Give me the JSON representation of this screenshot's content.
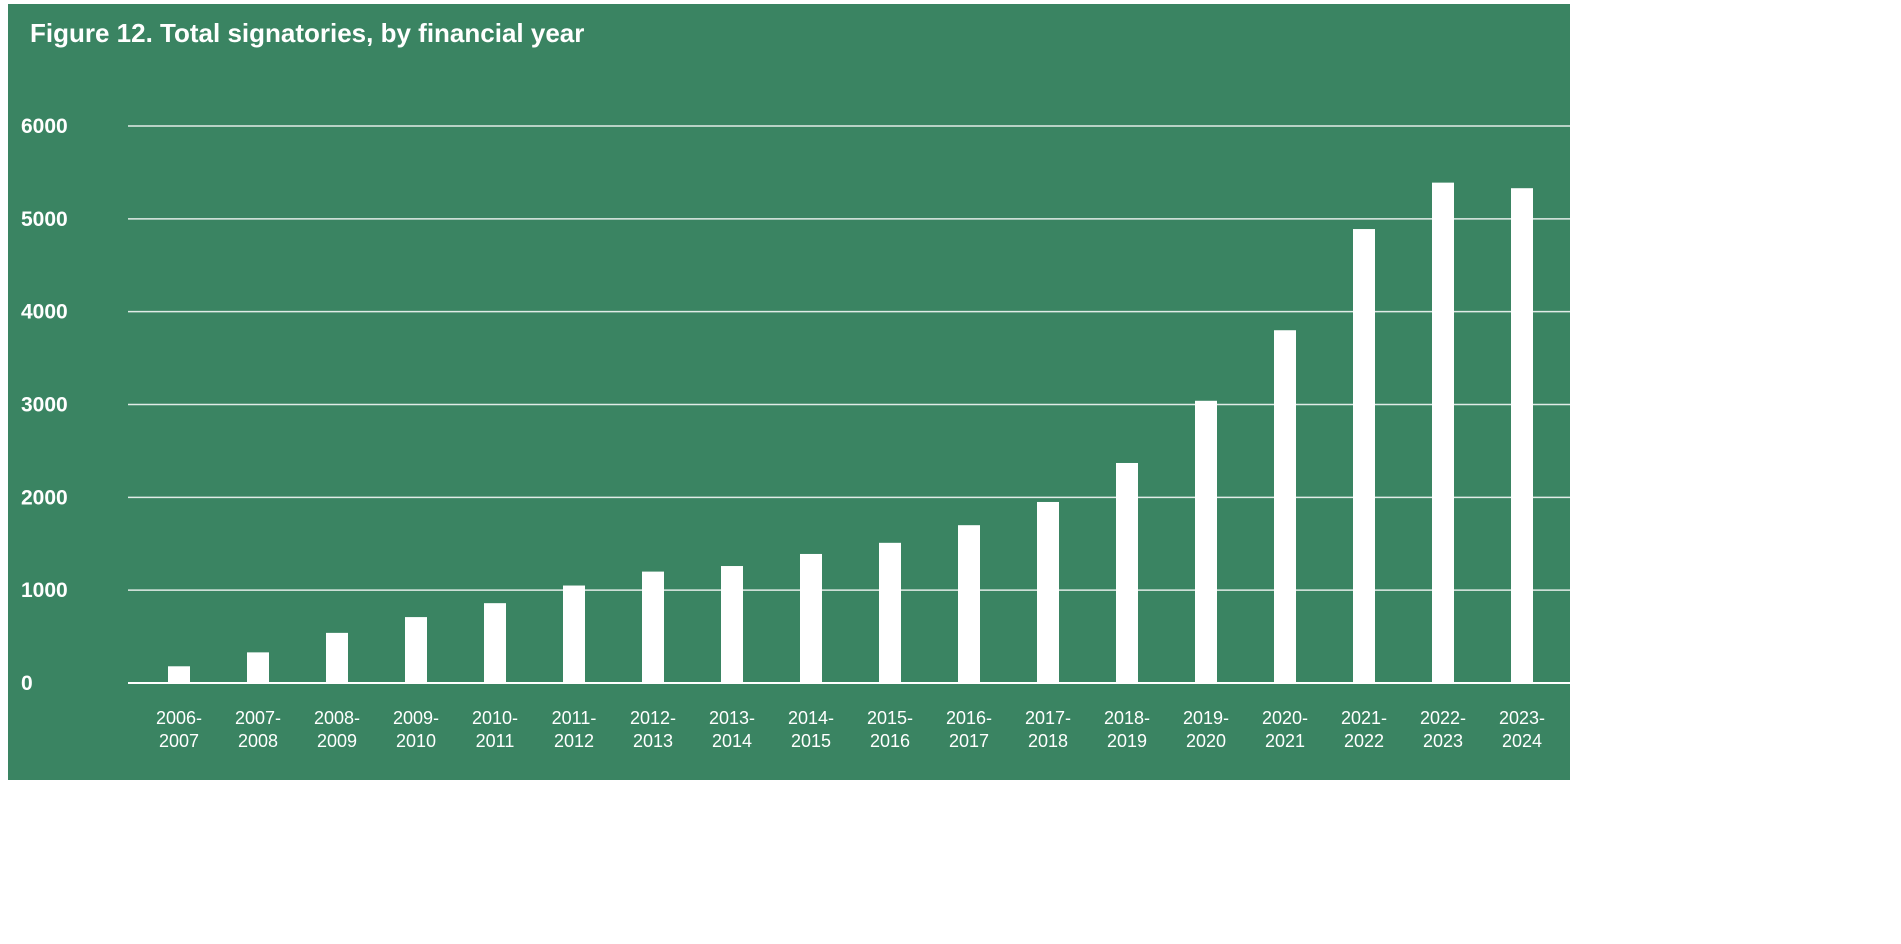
{
  "chart_data": {
    "type": "bar",
    "title": "Figure 12. Total signatories, by financial year",
    "xlabel": "",
    "ylabel": "",
    "ylim": [
      0,
      6000
    ],
    "yticks": [
      "0",
      "1000",
      "2000",
      "3000",
      "4000",
      "5000",
      "6000"
    ],
    "grid": true,
    "categories": [
      [
        "2006-",
        "2007"
      ],
      [
        "2007-",
        "2008"
      ],
      [
        "2008-",
        "2009"
      ],
      [
        "2009-",
        "2010"
      ],
      [
        "2010-",
        "2011"
      ],
      [
        "2011-",
        "2012"
      ],
      [
        "2012-",
        "2013"
      ],
      [
        "2013-",
        "2014"
      ],
      [
        "2014-",
        "2015"
      ],
      [
        "2015-",
        "2016"
      ],
      [
        "2016-",
        "2017"
      ],
      [
        "2017-",
        "2018"
      ],
      [
        "2018-",
        "2019"
      ],
      [
        "2019-",
        "2020"
      ],
      [
        "2020-",
        "2021"
      ],
      [
        "2021-",
        "2022"
      ],
      [
        "2022-",
        "2023"
      ],
      [
        "2023-",
        "2024"
      ]
    ],
    "values": [
      180,
      330,
      540,
      710,
      860,
      1050,
      1200,
      1260,
      1390,
      1510,
      1700,
      1950,
      2370,
      3040,
      3800,
      4890,
      5390,
      5330
    ],
    "colors": {
      "background": "#3a8462",
      "bar": "#ffffff",
      "grid": "#ffffff",
      "text": "#ffffff"
    }
  }
}
